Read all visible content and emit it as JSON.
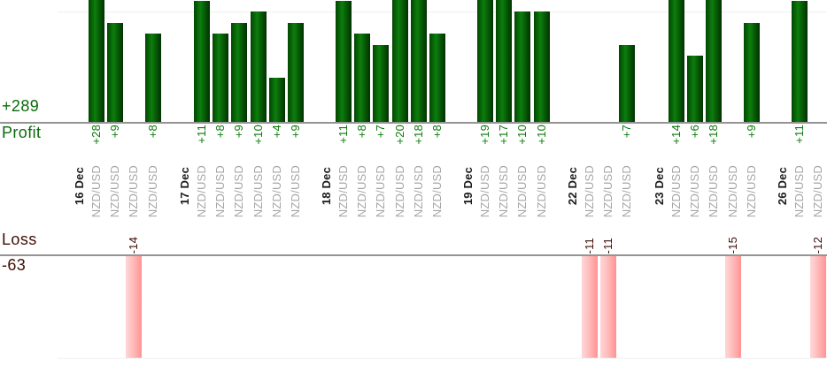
{
  "chart_data": {
    "type": "bar",
    "description": "Trade-by-trade profit and loss bar chart grouped by date; profits drawn upward from the Profit axis, losses drawn downward from the Loss axis",
    "pair_label_all": "NZD/USD",
    "groups": [
      {
        "date": "16 Dec",
        "trades": [
          {
            "pair": "NZD/USD",
            "value": 28,
            "display": "+28"
          },
          {
            "pair": "NZD/USD",
            "value": 9,
            "display": "+9"
          },
          {
            "pair": "NZD/USD",
            "value": -14,
            "display": "-14"
          },
          {
            "pair": "NZD/USD",
            "value": 8,
            "display": "+8"
          }
        ]
      },
      {
        "date": "17 Dec",
        "trades": [
          {
            "pair": "NZD/USD",
            "value": 11,
            "display": "+11"
          },
          {
            "pair": "NZD/USD",
            "value": 8,
            "display": "+8"
          },
          {
            "pair": "NZD/USD",
            "value": 9,
            "display": "+9"
          },
          {
            "pair": "NZD/USD",
            "value": 10,
            "display": "+10"
          },
          {
            "pair": "NZD/USD",
            "value": 4,
            "display": "+4"
          },
          {
            "pair": "NZD/USD",
            "value": 9,
            "display": "+9"
          }
        ]
      },
      {
        "date": "18 Dec",
        "trades": [
          {
            "pair": "NZD/USD",
            "value": 11,
            "display": "+11"
          },
          {
            "pair": "NZD/USD",
            "value": 8,
            "display": "+8"
          },
          {
            "pair": "NZD/USD",
            "value": 7,
            "display": "+7"
          },
          {
            "pair": "NZD/USD",
            "value": 20,
            "display": "+20"
          },
          {
            "pair": "NZD/USD",
            "value": 18,
            "display": "+18"
          },
          {
            "pair": "NZD/USD",
            "value": 8,
            "display": "+8"
          }
        ]
      },
      {
        "date": "19 Dec",
        "trades": [
          {
            "pair": "NZD/USD",
            "value": 19,
            "display": "+19"
          },
          {
            "pair": "NZD/USD",
            "value": 17,
            "display": "+17"
          },
          {
            "pair": "NZD/USD",
            "value": 10,
            "display": "+10"
          },
          {
            "pair": "NZD/USD",
            "value": 10,
            "display": "+10"
          }
        ]
      },
      {
        "date": "22 Dec",
        "trades": [
          {
            "pair": "NZD/USD",
            "value": -11,
            "display": "-11"
          },
          {
            "pair": "NZD/USD",
            "value": -11,
            "display": "-11"
          },
          {
            "pair": "NZD/USD",
            "value": 7,
            "display": "+7"
          }
        ]
      },
      {
        "date": "23 Dec",
        "trades": [
          {
            "pair": "NZD/USD",
            "value": 14,
            "display": "+14"
          },
          {
            "pair": "NZD/USD",
            "value": 6,
            "display": "+6"
          },
          {
            "pair": "NZD/USD",
            "value": 18,
            "display": "+18"
          },
          {
            "pair": "NZD/USD",
            "value": -15,
            "display": "-15"
          },
          {
            "pair": "NZD/USD",
            "value": 9,
            "display": "+9"
          }
        ]
      },
      {
        "date": "26 Dec",
        "trades": [
          {
            "pair": "NZD/USD",
            "value": 11,
            "display": "+11"
          },
          {
            "pair": "NZD/USD",
            "value": -12,
            "display": "-12"
          }
        ]
      }
    ],
    "profit": {
      "label": "Profit",
      "total_display": "+289",
      "total": 289
    },
    "loss": {
      "label": "Loss",
      "total_display": "-63",
      "total": -63
    },
    "layout_hints": {
      "profit_axis": "horizontal line, bars rise above it (tall bars clipped by top edge)",
      "loss_axis": "horizontal line, loss bars drop below it to bottom gridline",
      "gridlines": "one light line near top of profit area (= +10 level), one at bottom of loss area",
      "legend_position": "none",
      "colors": {
        "profit_bar": "#0c7e0c",
        "profit_bar_dark_edge": "#013101",
        "loss_bar": "#ff9393",
        "loss_bar_light_edge": "#ffd6d6",
        "profit_text": "#0a6b0a",
        "loss_text": "#400d04",
        "pair_text": "#a6a6a6",
        "date_text": "#1c1c1c",
        "axis_line": "#949494"
      }
    }
  }
}
